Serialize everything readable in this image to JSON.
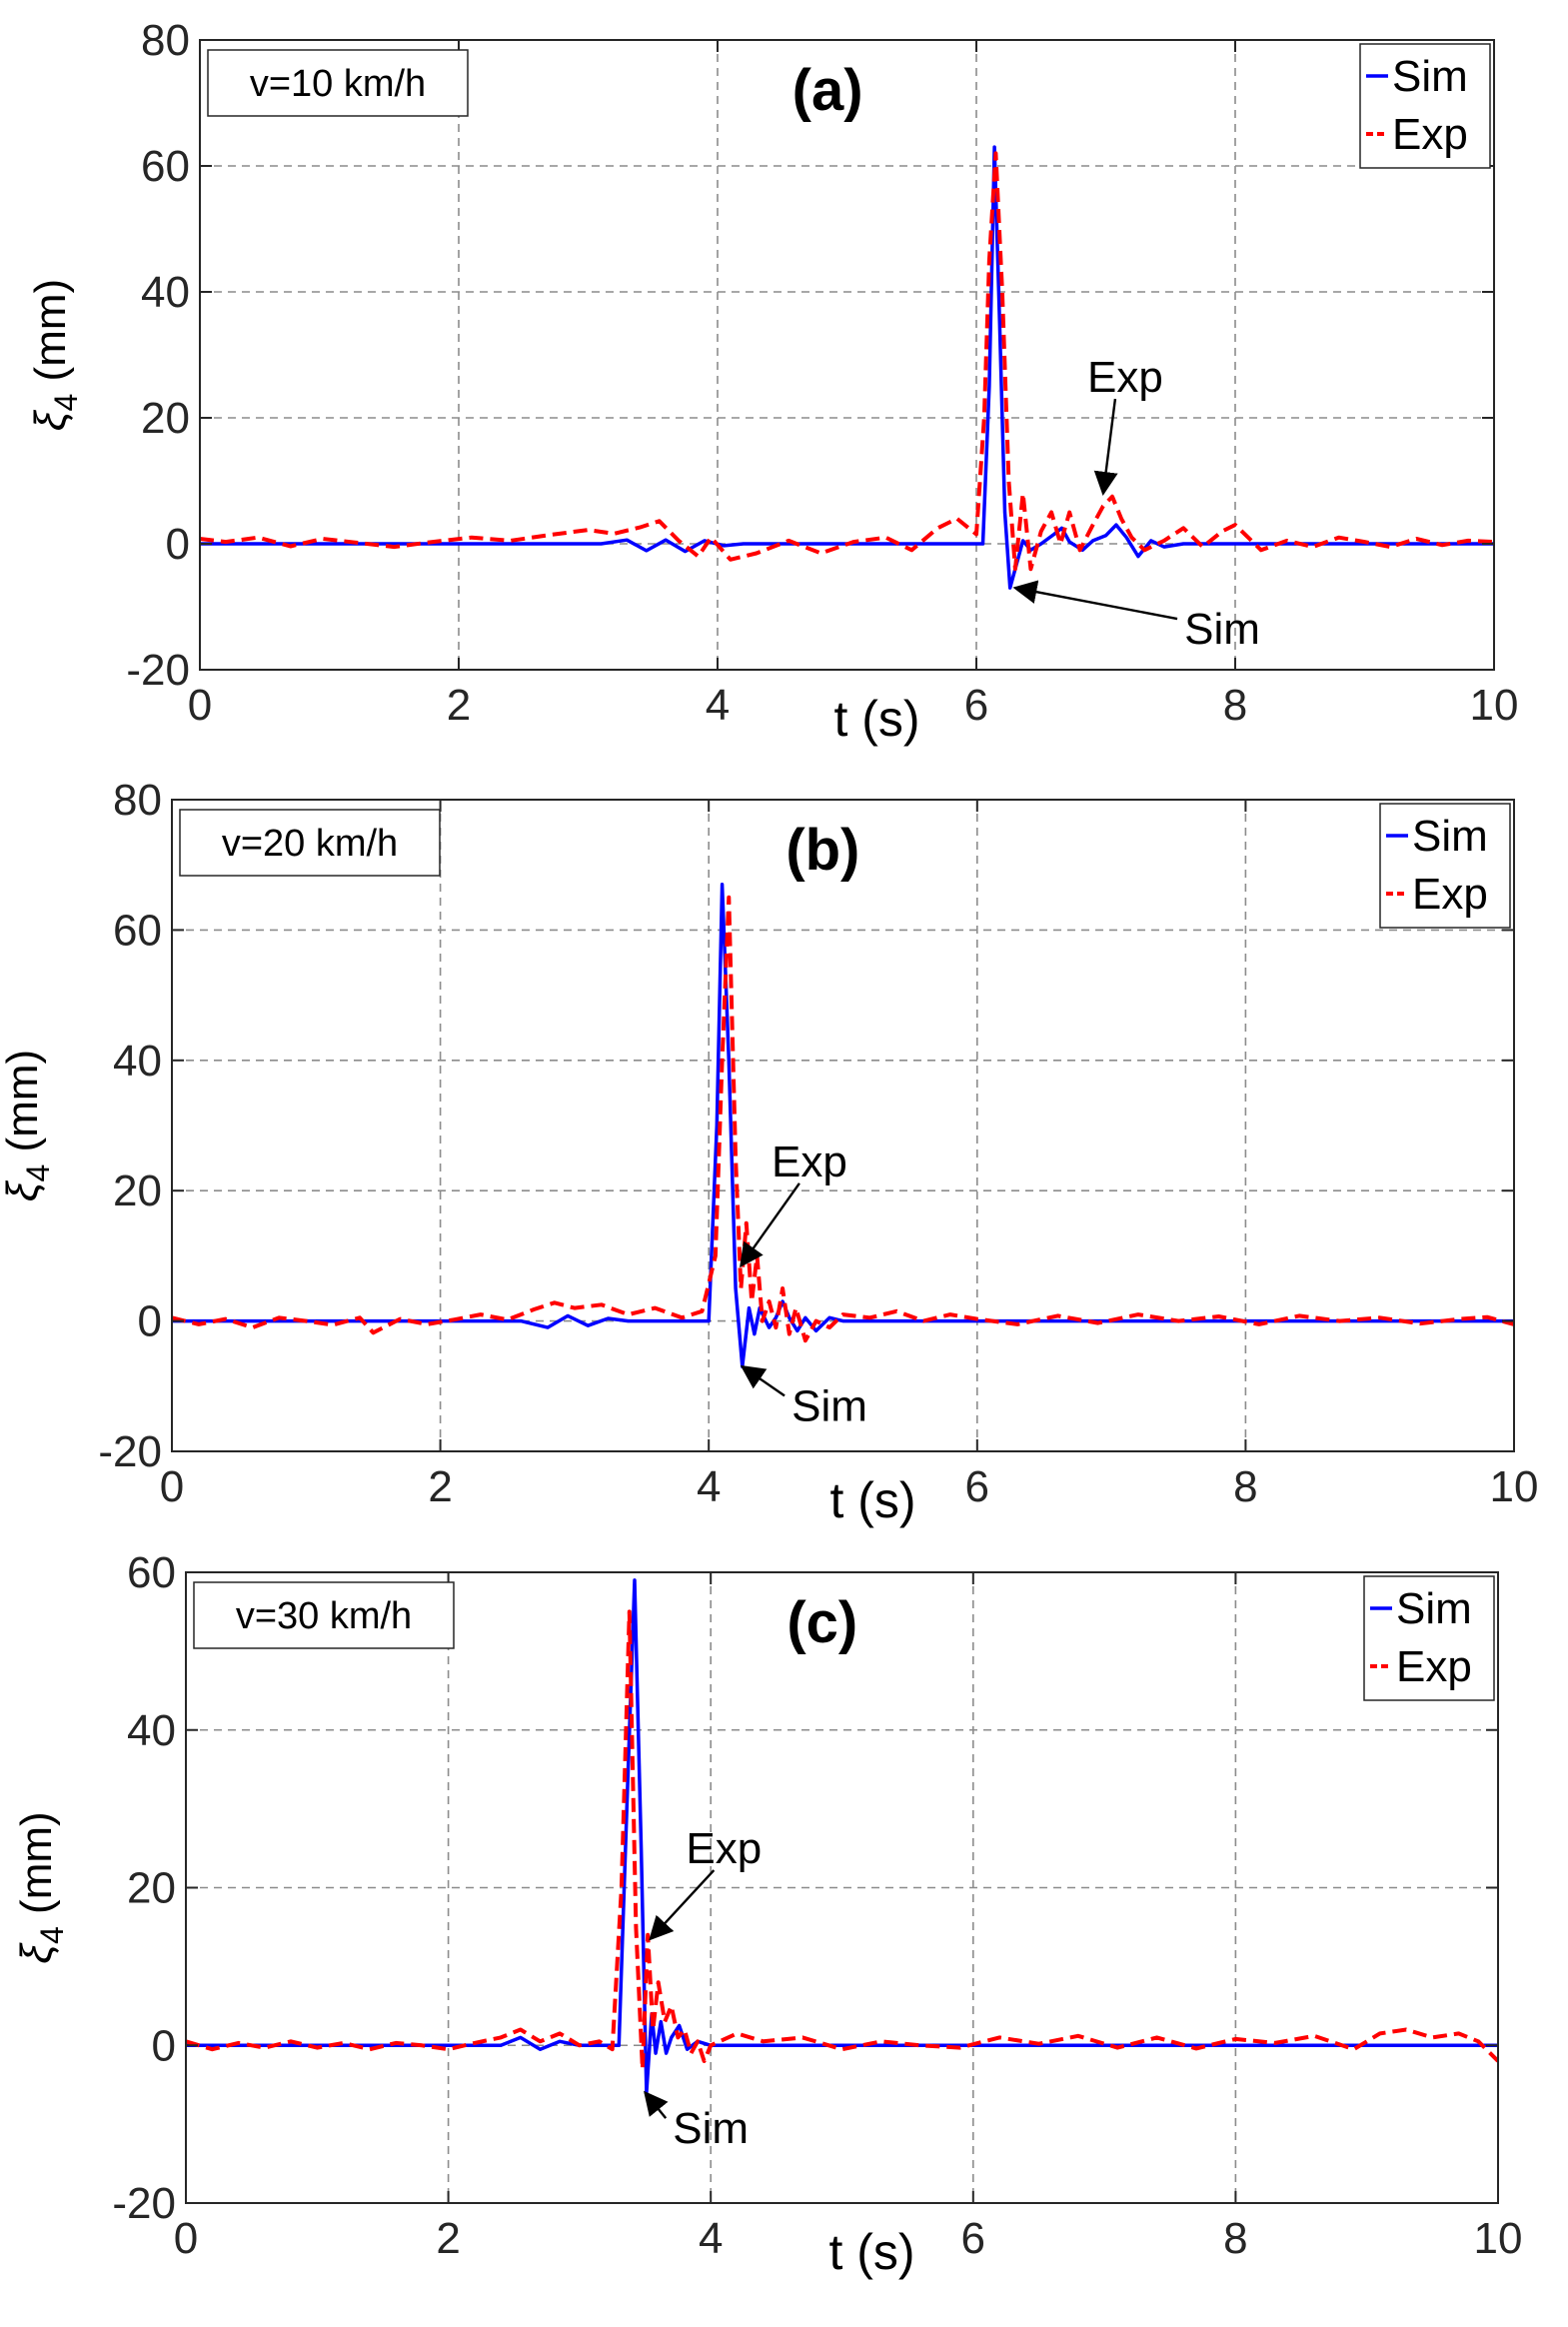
{
  "figure": {
    "colors": {
      "sim": "#0000ff",
      "exp": "#ff0000",
      "grid": "#8c8c8c",
      "axis": "#262626"
    }
  },
  "chart_data": [
    {
      "type": "line",
      "title": "(a)",
      "speed_label": "v=10 km/h",
      "xlabel": "t (s)",
      "ylabel_symbol": "ξ",
      "ylabel_sub": "4",
      "ylabel_unit": " (mm)",
      "xlim": [
        0,
        10
      ],
      "ylim": [
        -20,
        80
      ],
      "xticks": [
        0,
        2,
        4,
        6,
        8,
        10
      ],
      "yticks": [
        -20,
        0,
        20,
        40,
        60,
        80
      ],
      "grid": true,
      "legend": {
        "position": "top-right",
        "entries": [
          "Sim",
          "Exp"
        ]
      },
      "series": [
        {
          "name": "Sim",
          "x": [
            0,
            3.1,
            3.3,
            3.45,
            3.6,
            3.75,
            3.9,
            4.05,
            4.2,
            6.05,
            6.1,
            6.14,
            6.18,
            6.22,
            6.26,
            6.3,
            6.36,
            6.42,
            6.5,
            6.6,
            6.66,
            6.72,
            6.82,
            6.9,
            7.0,
            7.08,
            7.16,
            7.25,
            7.35,
            7.45,
            7.6,
            10
          ],
          "values": [
            0,
            0,
            0.6,
            -1.1,
            0.6,
            -1.2,
            0.5,
            -0.3,
            0,
            0,
            25,
            63,
            35,
            5,
            -7,
            -4,
            0.5,
            -1,
            0,
            1.5,
            2.5,
            0.3,
            -1,
            0.5,
            1.3,
            3,
            1,
            -2,
            0.5,
            -0.5,
            0,
            0
          ]
        },
        {
          "name": "Exp",
          "x": [
            0,
            0.2,
            0.45,
            0.7,
            0.95,
            1.2,
            1.5,
            1.8,
            2.1,
            2.4,
            2.7,
            3.0,
            3.2,
            3.4,
            3.55,
            3.7,
            3.85,
            3.95,
            4.1,
            4.3,
            4.55,
            4.8,
            5.05,
            5.3,
            5.5,
            5.7,
            5.85,
            6.0,
            6.06,
            6.1,
            6.15,
            6.2,
            6.25,
            6.3,
            6.36,
            6.42,
            6.5,
            6.58,
            6.65,
            6.72,
            6.8,
            6.9,
            6.98,
            7.05,
            7.12,
            7.2,
            7.3,
            7.45,
            7.6,
            7.75,
            7.9,
            8.0,
            8.2,
            8.4,
            8.6,
            8.8,
            9.0,
            9.2,
            9.4,
            9.6,
            9.8,
            10
          ],
          "values": [
            0.8,
            0.3,
            1,
            -0.4,
            0.8,
            0.2,
            -0.5,
            0.3,
            1,
            0.5,
            1.4,
            2.2,
            1.6,
            2.6,
            3.6,
            0.5,
            -2,
            1,
            -2.5,
            -1.5,
            0.5,
            -1.5,
            0.3,
            1,
            -1,
            2.5,
            4,
            1.5,
            20,
            45,
            62,
            40,
            10,
            -4,
            8,
            -4,
            2,
            5,
            0,
            5,
            -1,
            3,
            6,
            7.5,
            4,
            1,
            -1,
            0.5,
            2.5,
            -0.5,
            2,
            3,
            -1,
            0.5,
            -0.5,
            1,
            0.3,
            -0.5,
            0.8,
            -0.2,
            0.5,
            0.3
          ]
        }
      ],
      "annotations": [
        {
          "text": "Exp",
          "x": 7.15,
          "y": 26.5,
          "target_x": 6.98,
          "target_y": 8
        },
        {
          "text": "Sim",
          "x": 7.9,
          "y": -13.5,
          "target_x": 6.3,
          "target_y": -7
        }
      ]
    },
    {
      "type": "line",
      "title": "(b)",
      "speed_label": "v=20 km/h",
      "xlabel": "t (s)",
      "ylabel_symbol": "ξ",
      "ylabel_sub": "4",
      "ylabel_unit": " (mm)",
      "xlim": [
        0,
        10
      ],
      "ylim": [
        -20,
        80
      ],
      "xticks": [
        0,
        2,
        4,
        6,
        8,
        10
      ],
      "yticks": [
        -20,
        0,
        20,
        40,
        60,
        80
      ],
      "grid": true,
      "legend": {
        "position": "top-right",
        "entries": [
          "Sim",
          "Exp"
        ]
      },
      "series": [
        {
          "name": "Sim",
          "x": [
            0,
            2.6,
            2.8,
            2.95,
            3.1,
            3.25,
            3.4,
            4.0,
            4.06,
            4.1,
            4.15,
            4.2,
            4.25,
            4.3,
            4.34,
            4.38,
            4.45,
            4.5,
            4.55,
            4.6,
            4.66,
            4.72,
            4.8,
            4.9,
            5.0,
            10
          ],
          "values": [
            0,
            0,
            -1,
            0.8,
            -0.7,
            0.4,
            0,
            0,
            30,
            67,
            40,
            5,
            -7,
            2,
            -2,
            2,
            -1,
            0.5,
            3,
            0.5,
            -1.5,
            0.5,
            -1.5,
            0.5,
            0,
            0
          ]
        },
        {
          "name": "Exp",
          "x": [
            0,
            0.2,
            0.4,
            0.6,
            0.8,
            1.0,
            1.2,
            1.4,
            1.5,
            1.7,
            1.9,
            2.1,
            2.3,
            2.5,
            2.7,
            2.85,
            3.0,
            3.2,
            3.4,
            3.6,
            3.8,
            3.95,
            4.05,
            4.1,
            4.15,
            4.2,
            4.24,
            4.28,
            4.32,
            4.36,
            4.4,
            4.45,
            4.5,
            4.55,
            4.6,
            4.65,
            4.72,
            4.8,
            4.9,
            5.0,
            5.2,
            5.4,
            5.6,
            5.8,
            6.0,
            6.3,
            6.6,
            6.9,
            7.2,
            7.5,
            7.8,
            8.1,
            8.4,
            8.7,
            9.0,
            9.3,
            9.6,
            9.8,
            10
          ],
          "values": [
            0.5,
            -0.5,
            0.3,
            -1,
            0.5,
            0,
            -0.6,
            0.5,
            -1.8,
            0.3,
            -0.5,
            0.2,
            1,
            0.2,
            1.8,
            2.8,
            2,
            2.5,
            1,
            2,
            0.5,
            1.5,
            10,
            40,
            65,
            25,
            5,
            15,
            3,
            10,
            0,
            3,
            -1,
            5,
            -2,
            2,
            -3,
            0,
            -1,
            1,
            0.5,
            1.5,
            0,
            1,
            0.3,
            -0.5,
            0.8,
            -0.3,
            1,
            0,
            0.7,
            -0.5,
            0.8,
            0,
            0.5,
            -0.4,
            0.3,
            0.6,
            -0.5
          ]
        }
      ],
      "annotations": [
        {
          "text": "Exp",
          "x": 4.75,
          "y": 24.5,
          "target_x": 4.24,
          "target_y": 8.5
        },
        {
          "text": "Sim",
          "x": 4.9,
          "y": -13,
          "target_x": 4.25,
          "target_y": -7
        }
      ]
    },
    {
      "type": "line",
      "title": "(c)",
      "speed_label": "v=30 km/h",
      "xlabel": "t (s)",
      "ylabel_symbol": "ξ",
      "ylabel_sub": "4",
      "ylabel_unit": " (mm)",
      "xlim": [
        0,
        10
      ],
      "ylim": [
        -20,
        60
      ],
      "xticks": [
        0,
        2,
        4,
        6,
        8,
        10
      ],
      "yticks": [
        -20,
        0,
        20,
        40,
        60
      ],
      "grid": true,
      "legend": {
        "position": "top-right",
        "entries": [
          "Sim",
          "Exp"
        ]
      },
      "series": [
        {
          "name": "Sim",
          "x": [
            0,
            2.4,
            2.55,
            2.7,
            2.85,
            3.0,
            3.3,
            3.36,
            3.42,
            3.47,
            3.51,
            3.55,
            3.58,
            3.62,
            3.66,
            3.7,
            3.76,
            3.82,
            3.9,
            4.0,
            10
          ],
          "values": [
            0,
            0,
            1,
            -0.5,
            0.5,
            0,
            0,
            30,
            59,
            25,
            -6,
            4,
            -1,
            3,
            -1,
            1,
            2.5,
            -0.5,
            0.5,
            0,
            0
          ]
        },
        {
          "name": "Exp",
          "x": [
            0,
            0.2,
            0.4,
            0.6,
            0.8,
            1.0,
            1.2,
            1.4,
            1.6,
            1.8,
            2.0,
            2.2,
            2.4,
            2.55,
            2.7,
            2.85,
            3.0,
            3.15,
            3.25,
            3.32,
            3.38,
            3.43,
            3.48,
            3.52,
            3.56,
            3.6,
            3.65,
            3.7,
            3.75,
            3.8,
            3.85,
            3.9,
            3.95,
            4.0,
            4.2,
            4.4,
            4.7,
            5.0,
            5.3,
            5.6,
            5.9,
            6.2,
            6.5,
            6.8,
            7.1,
            7.4,
            7.7,
            8.0,
            8.3,
            8.6,
            8.9,
            9.1,
            9.3,
            9.5,
            9.7,
            9.85,
            10
          ],
          "values": [
            0.5,
            -0.5,
            0.3,
            -0.3,
            0.5,
            -0.3,
            0.3,
            -0.5,
            0.3,
            0,
            -0.5,
            0.3,
            1,
            2,
            0.5,
            1.5,
            0,
            0.5,
            -0.5,
            20,
            55,
            15,
            -3,
            14,
            2,
            8,
            3,
            5,
            1,
            2,
            -1,
            0.5,
            -2,
            0,
            1.5,
            0.5,
            1,
            -0.5,
            0.5,
            0,
            -0.3,
            1,
            0.2,
            1.2,
            -0.3,
            1,
            -0.4,
            0.8,
            0.3,
            1.2,
            -0.5,
            1.5,
            2,
            1,
            1.5,
            0.5,
            -2
          ]
        }
      ],
      "annotations": [
        {
          "text": "Exp",
          "x": 4.1,
          "y": 25,
          "target_x": 3.54,
          "target_y": 13.5
        },
        {
          "text": "Sim",
          "x": 4.0,
          "y": -10.5,
          "target_x": 3.5,
          "target_y": -6
        }
      ]
    }
  ]
}
